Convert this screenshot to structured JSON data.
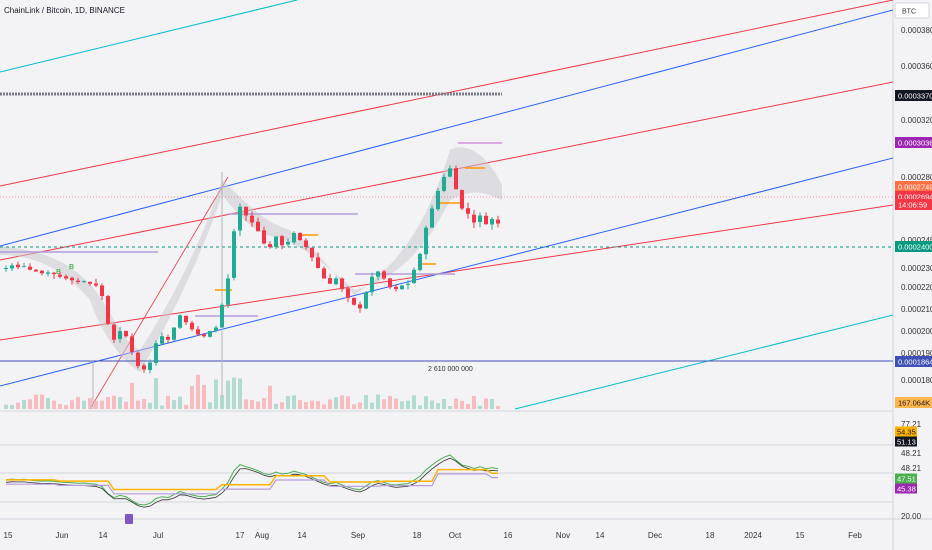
{
  "header": {
    "title": "ChainLink / Bitcoin, 1D, BINANCE",
    "currency_button": "BTC"
  },
  "colors": {
    "up": "#22ab94",
    "down": "#f23645",
    "blue_channel": "#2962ff",
    "red_channel": "#f23645",
    "cyan_channel": "#00bcd4",
    "rsi": "#7e57c2",
    "yellow": "#ffb300",
    "green": "#4caf50",
    "dashed_teal": "#089981"
  },
  "chart_data": {
    "type": "candlestick",
    "instrument": "ChainLink / Bitcoin",
    "interval": "1D",
    "exchange": "BINANCE",
    "price_axis": {
      "ticks": [
        "0.0003800",
        "0.0003600",
        "0.0003200",
        "0.0002800",
        "0.0002450",
        "0.0002300",
        "0.0002200",
        "0.0002100",
        "0.0002000",
        "0.0001900",
        "0.0001800"
      ],
      "ylim": [
        0.000172,
        0.000392
      ]
    },
    "time_axis": {
      "ticks": [
        "15",
        "Jun",
        "14",
        "Jul",
        "17",
        "Aug",
        "14",
        "Sep",
        "18",
        "Oct",
        "16",
        "Nov",
        "14",
        "Dec",
        "18",
        "2024",
        "15",
        "Feb"
      ]
    },
    "price_labels": [
      {
        "value": "0.0003370",
        "style": "black"
      },
      {
        "value": "0.0003036",
        "style": "purple"
      },
      {
        "value": "0.0002749",
        "style": "orange"
      },
      {
        "value": "0.0002694",
        "style": "red"
      },
      {
        "value": "14:06:59",
        "style": "red-sub"
      },
      {
        "value": "0.0002400",
        "style": "teal"
      },
      {
        "value": "0.0001864",
        "style": "indigo"
      },
      {
        "value": "167.064K",
        "style": "volume"
      }
    ],
    "volume_annotation": "2 610 000  000",
    "rsi_panel": {
      "ticks": [
        "77.21",
        "48.21",
        "48.21",
        "20.00"
      ],
      "labels": [
        {
          "value": "54.35",
          "style": "yellow"
        },
        {
          "value": "51.13",
          "style": "black"
        },
        {
          "value": "47.51",
          "style": "green"
        },
        {
          "value": "45.38",
          "style": "purple"
        }
      ]
    },
    "closes": [
      0.000244,
      0.0002455,
      0.0002445,
      0.000245,
      0.000243,
      0.000242,
      0.000241,
      0.0002415,
      0.0002405,
      0.000239,
      0.000238,
      0.000237,
      0.000236,
      0.0002365,
      0.000235,
      0.000234,
      0.000228,
      0.000212,
      0.000203,
      0.000208,
      0.000205,
      0.000196,
      0.000188,
      0.000186,
      0.00019,
      0.000201,
      0.000205,
      0.000203,
      0.00021,
      0.000217,
      0.000213,
      0.000209,
      0.000206,
      0.000205,
      0.000208,
      0.00021,
      0.000223,
      0.000238,
      0.000265,
      0.000279,
      0.000274,
      0.00027,
      0.000265,
      0.000258,
      0.000256,
      0.000262,
      0.000257,
      0.000259,
      0.000264,
      0.00026,
      0.000256,
      0.00025,
      0.000244,
      0.000238,
      0.000235,
      0.000238,
      0.000232,
      0.000227,
      0.000223,
      0.000221,
      0.00023,
      0.000239,
      0.000242,
      0.000238,
      0.000233,
      0.000232,
      0.000234,
      0.000235,
      0.000243,
      0.000252,
      0.000267,
      0.000278,
      0.000288,
      0.000296,
      0.000301,
      0.000289,
      0.000278,
      0.000275,
      0.00027,
      0.000274,
      0.000269,
      0.000272,
      0.0002694
    ]
  }
}
